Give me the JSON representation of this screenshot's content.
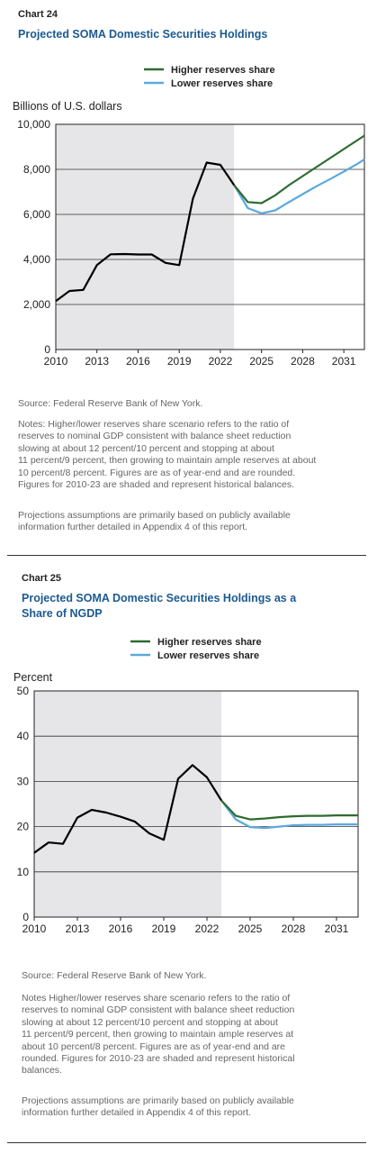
{
  "chart_data": [
    {
      "type": "line",
      "chart_label": "Chart 24",
      "title": "Projected SOMA Domestic Securities Holdings",
      "ylabel": "Billions of U.S. dollars",
      "ylim": [
        0,
        10000
      ],
      "yticks": [
        "10,000",
        "8,000",
        "6,000",
        "4,000",
        "2,000",
        "0"
      ],
      "xlim": [
        2010,
        2032.5
      ],
      "xticks": [
        "2010",
        "2013",
        "2016",
        "2019",
        "2022",
        "2025",
        "2028",
        "2031"
      ],
      "shaded_region": [
        2010,
        2023
      ],
      "legend_position": "top-right",
      "colors": {
        "history": "#000000",
        "higher": "#2e6b30",
        "lower": "#5aa9dd",
        "shade": "#e6e6e8"
      },
      "history": {
        "x": [
          2010,
          2011,
          2012,
          2013,
          2014,
          2015,
          2016,
          2017,
          2018,
          2019,
          2020,
          2021,
          2022,
          2023
        ],
        "values": [
          2150,
          2600,
          2650,
          3750,
          4230,
          4240,
          4220,
          4220,
          3850,
          3750,
          6700,
          8300,
          8200,
          7300
        ]
      },
      "series": [
        {
          "name": "Higher reserves share",
          "x": [
            2023,
            2024,
            2025,
            2026,
            2027,
            2028,
            2029,
            2030,
            2031,
            2032,
            2032.5
          ],
          "values": [
            7300,
            6550,
            6500,
            6850,
            7300,
            7700,
            8100,
            8500,
            8900,
            9300,
            9500
          ]
        },
        {
          "name": "Lower reserves share",
          "x": [
            2023,
            2024,
            2025,
            2026,
            2027,
            2028,
            2029,
            2030,
            2031,
            2032,
            2032.5
          ],
          "values": [
            7300,
            6280,
            6050,
            6180,
            6550,
            6900,
            7250,
            7570,
            7900,
            8250,
            8450
          ]
        }
      ]
    },
    {
      "type": "line",
      "chart_label": "Chart 25",
      "title": "Projected SOMA Domestic Securities Holdings as a Share of NGDP",
      "ylabel": "Percent",
      "ylim": [
        0,
        50
      ],
      "yticks": [
        "50",
        "40",
        "30",
        "20",
        "10",
        "0"
      ],
      "xlim": [
        2010,
        2032.5
      ],
      "xticks": [
        "2010",
        "2013",
        "2016",
        "2019",
        "2022",
        "2025",
        "2028",
        "2031"
      ],
      "shaded_region": [
        2010,
        2023
      ],
      "legend_position": "top-right",
      "colors": {
        "history": "#000000",
        "higher": "#2e6b30",
        "lower": "#5aa9dd",
        "shade": "#e6e6e8"
      },
      "history": {
        "x": [
          2010,
          2011,
          2012,
          2013,
          2014,
          2015,
          2016,
          2017,
          2018,
          2019,
          2020,
          2021,
          2022,
          2023
        ],
        "values": [
          14.2,
          16.5,
          16.2,
          22.0,
          23.7,
          23.1,
          22.2,
          21.1,
          18.5,
          17.1,
          30.6,
          33.6,
          30.9,
          25.8
        ]
      },
      "series": [
        {
          "name": "Higher reserves share",
          "x": [
            2023,
            2024,
            2025,
            2026,
            2027,
            2028,
            2029,
            2030,
            2031,
            2032,
            2032.5
          ],
          "values": [
            25.8,
            22.4,
            21.6,
            21.8,
            22.1,
            22.3,
            22.4,
            22.4,
            22.5,
            22.5,
            22.5
          ]
        },
        {
          "name": "Lower reserves share",
          "x": [
            2023,
            2024,
            2025,
            2026,
            2027,
            2028,
            2029,
            2030,
            2031,
            2032,
            2032.5
          ],
          "values": [
            25.8,
            21.6,
            19.9,
            19.7,
            20.0,
            20.3,
            20.4,
            20.4,
            20.5,
            20.5,
            20.5
          ]
        }
      ]
    }
  ],
  "notes": {
    "chart24": {
      "source": "Source: Federal Reserve Bank of New York.",
      "notes_lines": [
        "Notes: Higher/lower reserves share scenario refers to the ratio of",
        "reserves to nominal GDP consistent with balance sheet reduction",
        "slowing at about 12 percent/10 percent and stopping at about",
        "11 percent/9 percent, then growing to maintain ample reserves at about",
        "10 percent/8 percent. Figures are as of year-end and are rounded.",
        "Figures for 2010-23 are shaded and represent historical balances."
      ],
      "proj_lines": [
        "Projections assumptions are primarily based on publicly available",
        "information further detailed in Appendix 4 of this report."
      ]
    },
    "chart25": {
      "source": "Source: Federal Reserve Bank of New York.",
      "notes_lines": [
        "Notes Higher/lower reserves share scenario refers to the ratio of",
        "reserves to nominal GDP consistent with balance sheet reduction",
        "slowing at about 12 percent/10 percent and stopping at about",
        "11 percent/9 percent, then growing to maintain ample reserves at",
        "about 10 percent/8 percent. Figures are as of year-end and are",
        "rounded. Figures for 2010-23 are shaded and represent historical",
        "balances."
      ],
      "proj_lines": [
        "Projections assumptions are primarily based on publicly available",
        "information further detailed in Appendix 4 of this report."
      ]
    }
  }
}
